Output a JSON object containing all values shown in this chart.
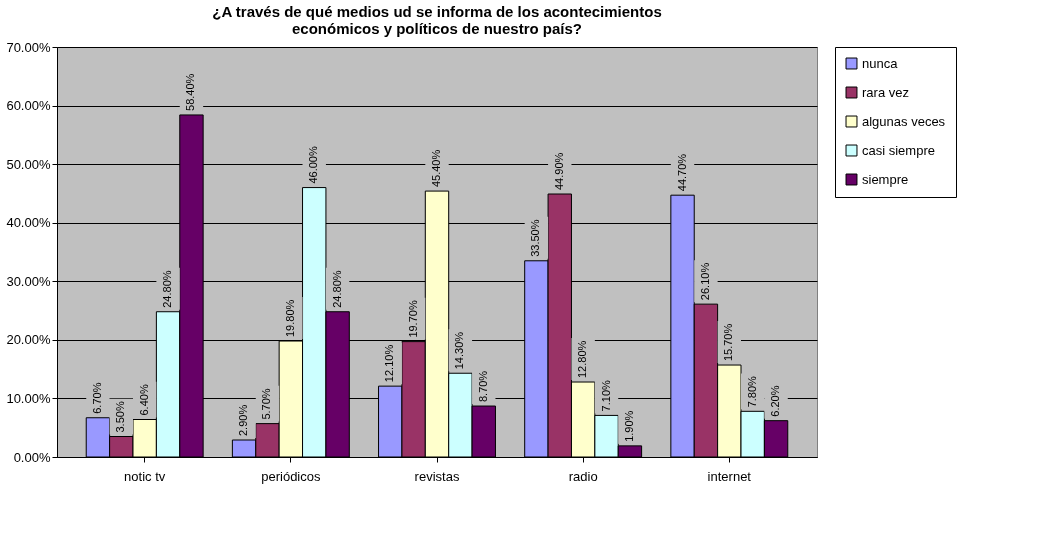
{
  "chart_data": {
    "type": "bar",
    "title": "¿A través de qué medios ud se informa de los acontecimientos económicos y políticos de nuestro país?",
    "categories": [
      "notic tv",
      "periódicos",
      "revistas",
      "radio",
      "internet"
    ],
    "series": [
      {
        "name": "nunca",
        "color": "#9999ff",
        "values": [
          6.7,
          2.9,
          12.1,
          33.5,
          44.7
        ],
        "value_labels": [
          "6.70%",
          "2.90%",
          "12.10%",
          "33.50%",
          "44.70%"
        ]
      },
      {
        "name": "rara vez",
        "color": "#993366",
        "values": [
          3.5,
          5.7,
          19.7,
          44.9,
          26.1
        ],
        "value_labels": [
          "3.50%",
          "5.70%",
          "19.70%",
          "44.90%",
          "26.10%"
        ]
      },
      {
        "name": "algunas veces",
        "color": "#ffffcc",
        "values": [
          6.4,
          19.8,
          45.4,
          12.8,
          15.7
        ],
        "value_labels": [
          "6.40%",
          "19.80%",
          "45.40%",
          "12.80%",
          "15.70%"
        ]
      },
      {
        "name": "casi siempre",
        "color": "#ccffff",
        "values": [
          24.8,
          46.0,
          14.3,
          7.1,
          7.8
        ],
        "value_labels": [
          "24.80%",
          "46.00%",
          "14.30%",
          "7.10%",
          "7.80%"
        ]
      },
      {
        "name": "siempre",
        "color": "#660066",
        "values": [
          58.4,
          24.8,
          8.7,
          1.9,
          6.2
        ],
        "value_labels": [
          "58.40%",
          "24.80%",
          "8.70%",
          "1.90%",
          "6.20%"
        ]
      }
    ],
    "ylim": [
      0,
      70
    ],
    "yticks": [
      {
        "value": 0,
        "label": "0.00%"
      },
      {
        "value": 10,
        "label": "10.00%"
      },
      {
        "value": 20,
        "label": "20.00%"
      },
      {
        "value": 30,
        "label": "30.00%"
      },
      {
        "value": 40,
        "label": "40.00%"
      },
      {
        "value": 50,
        "label": "50.00%"
      },
      {
        "value": 60,
        "label": "60.00%"
      },
      {
        "value": 70,
        "label": "70.00%"
      }
    ],
    "grid": "y",
    "legend": "right"
  }
}
